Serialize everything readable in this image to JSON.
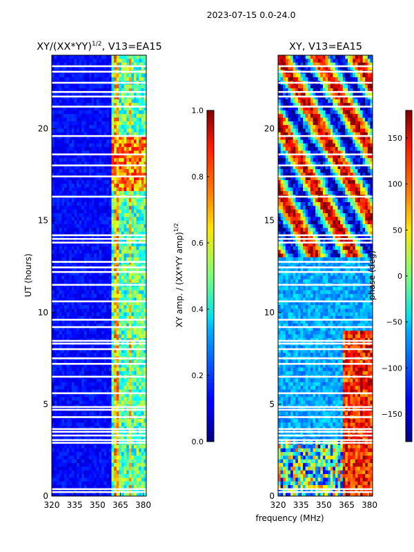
{
  "figure": {
    "suptitle": "2023-07-15 0.0-24.0",
    "shared_xlabel": "frequency (MHz)"
  },
  "chart_data": [
    {
      "type": "heatmap",
      "title": "XY/(XX*YY)",
      "title_sup": "1/2",
      "title_suffix": ", V13=EA15",
      "xlabel": "",
      "ylabel": "UT (hours)",
      "xlim": [
        320,
        382
      ],
      "ylim": [
        0,
        24
      ],
      "xticks": [
        "320",
        "335",
        "350",
        "365",
        "380"
      ],
      "xtick_values": [
        320,
        335,
        350,
        365,
        380
      ],
      "yticks": [
        "0",
        "5",
        "10",
        "15",
        "20"
      ],
      "ytick_values": [
        0,
        5,
        10,
        15,
        20
      ],
      "colorbar": {
        "label": "XY amp. / (XX*YY amp)",
        "label_sup": "1/2",
        "range": [
          0.0,
          1.0
        ],
        "ticks": [
          "0.0",
          "0.2",
          "0.4",
          "0.6",
          "0.8",
          "1.0"
        ],
        "tick_values": [
          0.0,
          0.2,
          0.4,
          0.6,
          0.8,
          1.0
        ]
      }
    },
    {
      "type": "heatmap",
      "title": "XY, V13=EA15",
      "xlabel": "frequency (MHz)",
      "ylabel": "",
      "xlim": [
        320,
        382
      ],
      "ylim": [
        0,
        24
      ],
      "xticks": [
        "320",
        "335",
        "350",
        "365",
        "380"
      ],
      "xtick_values": [
        320,
        335,
        350,
        365,
        380
      ],
      "yticks": [
        "0",
        "5",
        "10",
        "15",
        "20"
      ],
      "ytick_values": [
        0,
        5,
        10,
        15,
        20
      ],
      "colorbar": {
        "label": "phase (deg)",
        "range": [
          -180,
          180
        ],
        "ticks": [
          "−150",
          "−100",
          "−50",
          "0",
          "50",
          "100",
          "150"
        ],
        "tick_values": [
          -150,
          -100,
          -50,
          0,
          50,
          100,
          150
        ]
      }
    }
  ],
  "flagged_hours": [
    0.22,
    0.38,
    2.9,
    3.05,
    3.3,
    3.5,
    3.65,
    4.3,
    4.7,
    4.85,
    5.6,
    6.5,
    7.2,
    7.5,
    8.0,
    8.3,
    8.45,
    9.2,
    9.6,
    10.6,
    11.5,
    12.2,
    12.45,
    12.75,
    13.8,
    14.0,
    14.2,
    16.3,
    17.4,
    18.0,
    18.6,
    19.6,
    21.2,
    21.75,
    22.0,
    22.5,
    23.1,
    23.4
  ]
}
